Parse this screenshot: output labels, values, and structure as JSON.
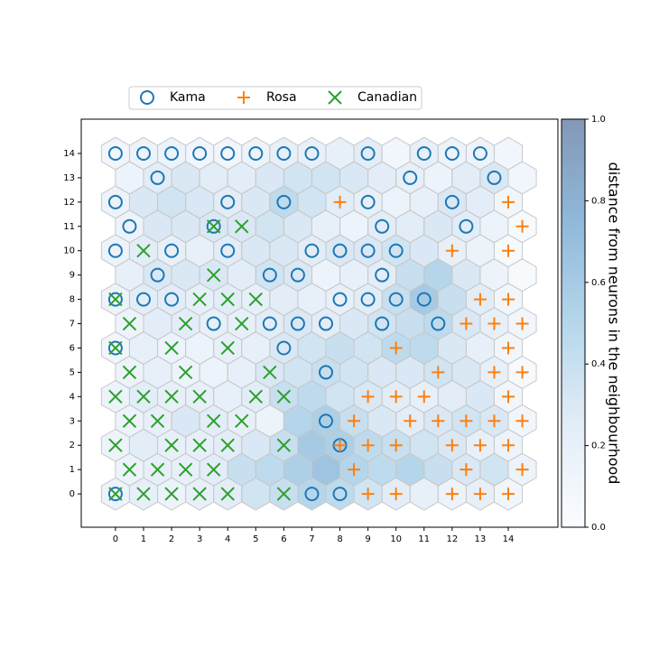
{
  "chart_data": {
    "type": "som",
    "xlim": [
      -1.22,
      15.77
    ],
    "ylim": [
      -1.37,
      15.41
    ],
    "xticks": [
      0,
      1,
      2,
      3,
      4,
      5,
      6,
      7,
      8,
      9,
      10,
      11,
      12,
      13,
      14
    ],
    "yticks": [
      0,
      1,
      2,
      3,
      4,
      5,
      6,
      7,
      8,
      9,
      10,
      11,
      12,
      13,
      14
    ],
    "legend": "top",
    "colorbar": {
      "label": "distance from neurons in the neighbourhood",
      "lim": [
        0,
        1
      ],
      "ticks": [
        {
          "value": 0,
          "label": "0.0"
        },
        0.2,
        0.4,
        0.6,
        0.8,
        {
          "value": 1,
          "label": "1.0"
        }
      ],
      "colormap": [
        "#f7fbff",
        "#c6dbef",
        "#6baed6",
        "#2171b5",
        "#08306b"
      ]
    },
    "distance": [
      [
        0.15,
        0.2,
        0.15,
        0.2,
        0.25,
        0.35,
        0.4,
        0.5,
        0.45,
        0.35,
        0.25,
        0.2,
        0.15,
        0.2,
        0.1
      ],
      [
        0.15,
        0.2,
        0.2,
        0.25,
        0.4,
        0.45,
        0.55,
        0.65,
        0.5,
        0.45,
        0.5,
        0.4,
        0.3,
        0.35,
        0.15
      ],
      [
        0.15,
        0.25,
        0.2,
        0.2,
        0.25,
        0.3,
        0.4,
        0.6,
        0.55,
        0.45,
        0.4,
        0.35,
        0.3,
        0.2,
        0.15
      ],
      [
        0.15,
        0.2,
        0.3,
        0.25,
        0.2,
        0.15,
        0.5,
        0.55,
        0.4,
        0.3,
        0.25,
        0.3,
        0.35,
        0.3,
        0.1
      ],
      [
        0.15,
        0.25,
        0.2,
        0.2,
        0.2,
        0.25,
        0.4,
        0.45,
        0.35,
        0.3,
        0.25,
        0.2,
        0.25,
        0.3,
        0.1
      ],
      [
        0.15,
        0.2,
        0.15,
        0.15,
        0.2,
        0.3,
        0.35,
        0.4,
        0.35,
        0.3,
        0.3,
        0.35,
        0.3,
        0.2,
        0.05
      ],
      [
        0.1,
        0.2,
        0.15,
        0.15,
        0.2,
        0.2,
        0.3,
        0.35,
        0.4,
        0.35,
        0.45,
        0.45,
        0.3,
        0.2,
        0.1
      ],
      [
        0.15,
        0.25,
        0.25,
        0.2,
        0.2,
        0.25,
        0.3,
        0.25,
        0.3,
        0.35,
        0.4,
        0.45,
        0.3,
        0.2,
        0.1
      ],
      [
        0.15,
        0.25,
        0.25,
        0.2,
        0.25,
        0.2,
        0.25,
        0.2,
        0.2,
        0.25,
        0.4,
        0.6,
        0.4,
        0.25,
        0.1
      ],
      [
        0.2,
        0.3,
        0.3,
        0.3,
        0.25,
        0.35,
        0.3,
        0.15,
        0.2,
        0.25,
        0.4,
        0.5,
        0.3,
        0.15,
        0.05
      ],
      [
        0.15,
        0.25,
        0.2,
        0.2,
        0.25,
        0.3,
        0.3,
        0.25,
        0.3,
        0.3,
        0.35,
        0.3,
        0.2,
        0.15,
        0.05
      ],
      [
        0.15,
        0.3,
        0.3,
        0.3,
        0.3,
        0.35,
        0.3,
        0.2,
        0.15,
        0.25,
        0.25,
        0.3,
        0.25,
        0.15,
        0.05
      ],
      [
        0.15,
        0.3,
        0.35,
        0.3,
        0.25,
        0.3,
        0.45,
        0.35,
        0.25,
        0.2,
        0.15,
        0.2,
        0.3,
        0.25,
        0.1
      ],
      [
        0.15,
        0.25,
        0.3,
        0.25,
        0.25,
        0.3,
        0.35,
        0.35,
        0.3,
        0.25,
        0.2,
        0.15,
        0.25,
        0.3,
        0.1
      ],
      [
        0.1,
        0.15,
        0.15,
        0.1,
        0.1,
        0.15,
        0.2,
        0.2,
        0.2,
        0.25,
        0.1,
        0.2,
        0.15,
        0.15,
        0.1
      ]
    ],
    "series": [
      {
        "name": "Kama",
        "color": "#1f77b4",
        "marker": "o",
        "x": [
          0,
          1,
          2,
          3,
          4,
          5,
          6,
          7,
          9,
          11,
          12,
          13,
          1.5,
          10.5,
          13.5,
          0,
          4,
          6,
          9,
          12,
          0.5,
          3.5,
          9.5,
          12.5,
          0,
          2,
          4,
          7,
          8,
          9,
          10,
          1.5,
          5.5,
          6.5,
          9.5,
          0,
          1,
          2,
          8,
          9,
          10,
          11,
          3.5,
          5.5,
          6.5,
          7.5,
          9.5,
          11.5,
          0,
          6,
          7.5,
          7.5,
          8,
          0,
          7,
          8
        ],
        "y": [
          14,
          14,
          14,
          14,
          14,
          14,
          14,
          14,
          14,
          14,
          14,
          14,
          13,
          13,
          13,
          12,
          12,
          12,
          12,
          12,
          11,
          11,
          11,
          11,
          10,
          10,
          10,
          10,
          10,
          10,
          10,
          9,
          9,
          9,
          9,
          8,
          8,
          8,
          8,
          8,
          8,
          8,
          7,
          7,
          7,
          7,
          7,
          7,
          6,
          6,
          5,
          3,
          2,
          0,
          0,
          0
        ]
      },
      {
        "name": "Rosa",
        "color": "#ff7f0e",
        "marker": "+",
        "x": [
          8,
          14,
          14.5,
          12,
          14,
          13,
          14,
          12.5,
          13.5,
          14.5,
          10,
          14,
          11.5,
          13.5,
          14.5,
          9,
          10,
          11,
          14,
          8.5,
          10.5,
          11.5,
          12.5,
          13.5,
          14.5,
          8,
          9,
          10,
          12,
          13,
          14,
          8.5,
          12.5,
          14.5,
          9,
          10,
          12,
          13,
          14
        ],
        "y": [
          12,
          12,
          11,
          10,
          10,
          8,
          8,
          7,
          7,
          7,
          6,
          6,
          5,
          5,
          5,
          4,
          4,
          4,
          4,
          3,
          3,
          3,
          3,
          3,
          3,
          2,
          2,
          2,
          2,
          2,
          2,
          1,
          1,
          1,
          0,
          0,
          0,
          0,
          0
        ]
      },
      {
        "name": "Canadian",
        "color": "#2ca02c",
        "marker": "x",
        "x": [
          3.5,
          4.5,
          1,
          3.5,
          0,
          3,
          4,
          5,
          0.5,
          2.5,
          4.5,
          0,
          2,
          4,
          0.5,
          2.5,
          5.5,
          0,
          1,
          2,
          3,
          5,
          6,
          0.5,
          1.5,
          3.5,
          4.5,
          0,
          2,
          3,
          4,
          6,
          0.5,
          1.5,
          2.5,
          3.5,
          0,
          1,
          2,
          3,
          4,
          6
        ],
        "y": [
          11,
          11,
          10,
          9,
          8,
          8,
          8,
          8,
          7,
          7,
          7,
          6,
          6,
          6,
          5,
          5,
          5,
          4,
          4,
          4,
          4,
          4,
          4,
          3,
          3,
          3,
          3,
          2,
          2,
          2,
          2,
          2,
          1,
          1,
          1,
          1,
          0,
          0,
          0,
          0,
          0,
          0
        ]
      }
    ]
  }
}
